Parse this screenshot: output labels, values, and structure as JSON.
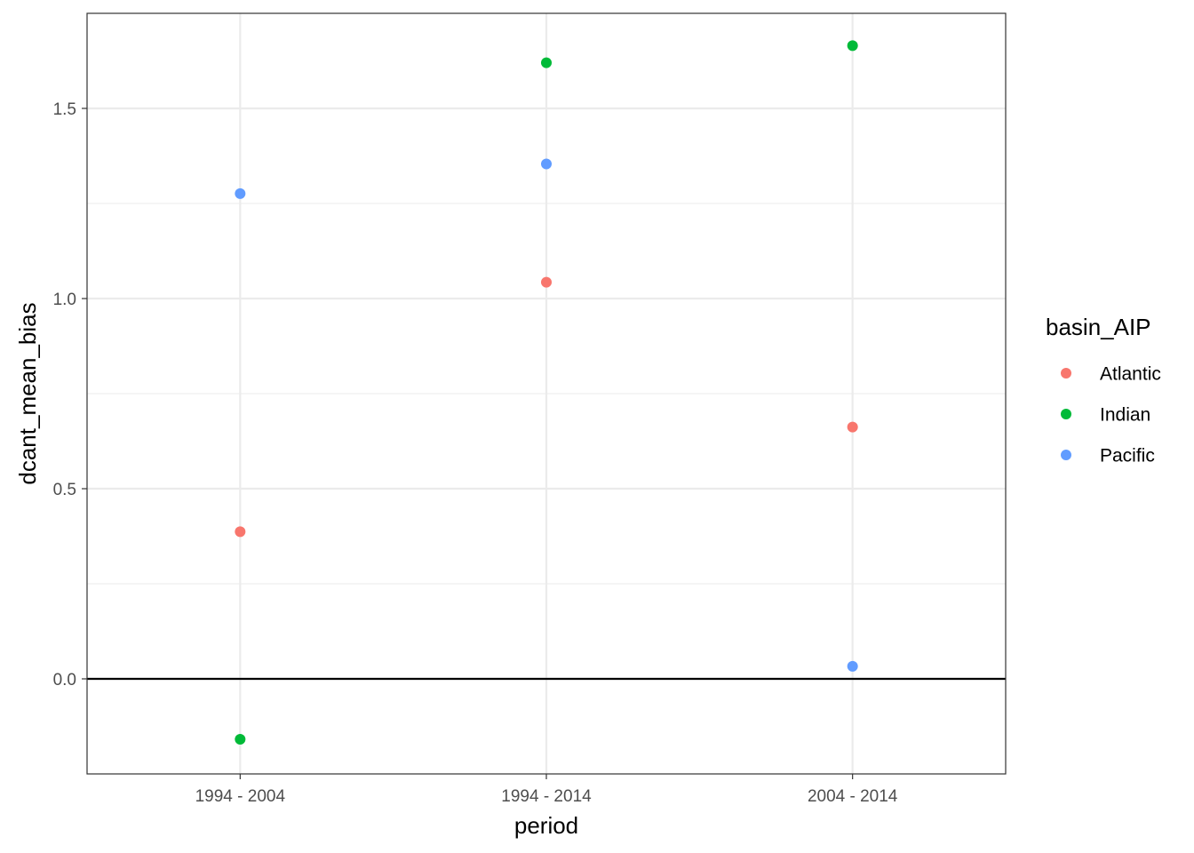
{
  "chart_data": {
    "type": "scatter",
    "xlabel": "period",
    "ylabel": "dcant_mean_bias",
    "categories": [
      "1994 - 2004",
      "1994 - 2014",
      "2004 - 2014"
    ],
    "ylim": [
      -0.25,
      1.75
    ],
    "yticks": [
      0.0,
      0.5,
      1.0,
      1.5
    ],
    "ytick_labels": [
      "0.0",
      "0.5",
      "1.0",
      "1.5"
    ],
    "hline": 0,
    "grid": true,
    "legend": {
      "title": "basin_AIP",
      "position": "right"
    },
    "series": [
      {
        "name": "Atlantic",
        "color": "#F8766D",
        "values": [
          0.387,
          1.043,
          0.662
        ]
      },
      {
        "name": "Indian",
        "color": "#00BA38",
        "values": [
          -0.159,
          1.62,
          1.665
        ]
      },
      {
        "name": "Pacific",
        "color": "#619CFF",
        "values": [
          1.276,
          1.354,
          0.033
        ]
      }
    ]
  }
}
